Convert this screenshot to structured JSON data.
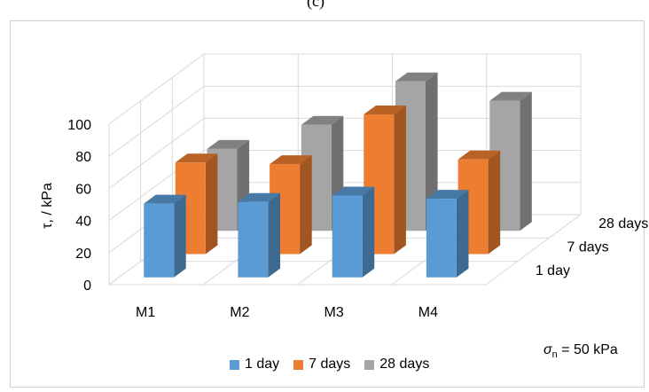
{
  "panel_label": "(c)",
  "annotation": {
    "symbol": "σ",
    "subscript": "n",
    "rest": " = 50 kPa"
  },
  "chart_data": {
    "type": "bar",
    "subtype": "3d-clustered-depth",
    "ylabel": "τ, / kPa",
    "ylim": [
      0,
      100
    ],
    "yticks": [
      0,
      20,
      40,
      60,
      80,
      100
    ],
    "grid": true,
    "legend_position": "bottom",
    "categories": [
      "M1",
      "M2",
      "M3",
      "M4"
    ],
    "series": [
      {
        "name": "1 day",
        "color": "#5b9bd5",
        "values": [
          46,
          47,
          51,
          49
        ]
      },
      {
        "name": "7 days",
        "color": "#ed7d31",
        "values": [
          57,
          56,
          87,
          59
        ]
      },
      {
        "name": "28 days",
        "color": "#a5a5a5",
        "values": [
          51,
          66,
          93,
          81
        ]
      }
    ]
  }
}
